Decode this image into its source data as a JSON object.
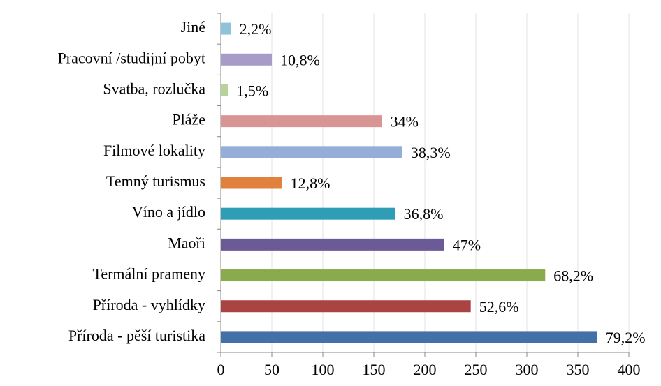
{
  "chart_data": {
    "type": "barh",
    "categories": [
      "Jiné",
      "Pracovní /studijní pobyt",
      "Svatba, rozlučka",
      "Pláže",
      "Filmové lokality",
      "Temný turismus",
      "Víno a jídlo",
      "Maoři",
      "Termální prameny",
      "Příroda - vyhlídky",
      "Příroda - pěší turistika"
    ],
    "values": [
      10,
      50,
      7,
      158,
      178,
      60,
      171,
      219,
      318,
      245,
      369
    ],
    "value_labels": [
      "2,2%",
      "10,8%",
      "1,5%",
      "34%",
      "38,3%",
      "12,8%",
      "36,8%",
      "47%",
      "68,2%",
      "52,6%",
      "79,2%"
    ],
    "colors": [
      "#8fc3d9",
      "#a99bc7",
      "#b7d39a",
      "#d99594",
      "#95aed8",
      "#e0823d",
      "#2e9db5",
      "#6c5a96",
      "#8aab4c",
      "#a94442",
      "#4470a8"
    ],
    "xlim": [
      0,
      400
    ],
    "xticks": [
      0,
      50,
      100,
      150,
      200,
      250,
      300,
      350,
      400
    ],
    "grid": true
  }
}
